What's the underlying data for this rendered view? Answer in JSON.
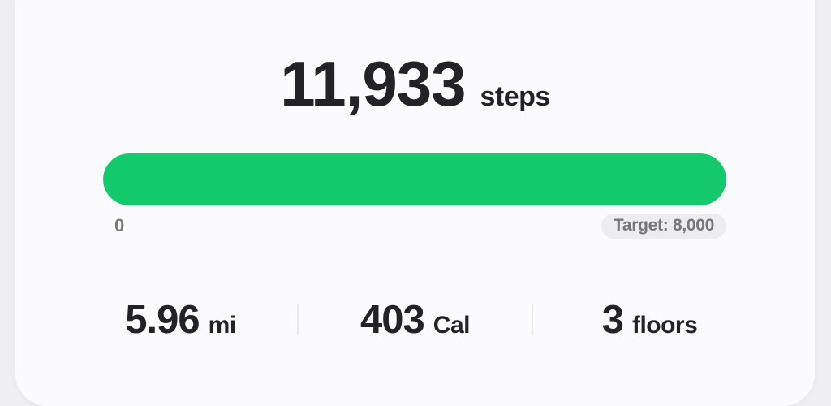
{
  "colors": {
    "accent_green": "#12c96c",
    "card_bg": "#fbfbfd",
    "page_bg": "#f0f0f2",
    "text_dark": "#232326",
    "text_gray": "#7a7a7e",
    "pill_bg": "#ededf0"
  },
  "steps": {
    "value": "11,933",
    "unit": "steps"
  },
  "progress": {
    "percent": 100,
    "min_label": "0",
    "target_label": "Target: 8,000"
  },
  "stats": [
    {
      "value": "5.96",
      "unit": "mi"
    },
    {
      "value": "403",
      "unit": "Cal"
    },
    {
      "value": "3",
      "unit": "floors"
    }
  ]
}
